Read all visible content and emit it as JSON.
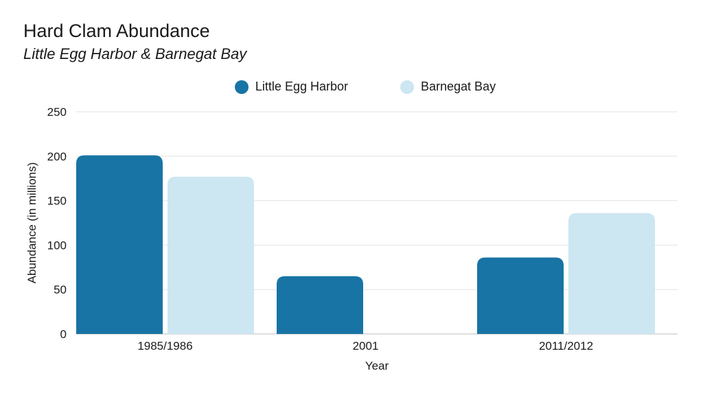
{
  "chart_data": {
    "type": "bar",
    "title": "Hard Clam Abundance",
    "subtitle": "Little Egg Harbor & Barnegat Bay",
    "xlabel": "Year",
    "ylabel": "Abundance (in millions)",
    "categories": [
      "1985/1986",
      "2001",
      "2011/2012"
    ],
    "series": [
      {
        "name": "Little Egg Harbor",
        "color": "#1874a4",
        "values": [
          201,
          65,
          86
        ]
      },
      {
        "name": "Barnegat Bay",
        "color": "#cce6f2",
        "values": [
          177,
          null,
          136
        ]
      }
    ],
    "ylim": [
      0,
      250
    ],
    "yticks": [
      0,
      50,
      100,
      150,
      200,
      250
    ],
    "grid": true,
    "legend_position": "top-center"
  }
}
